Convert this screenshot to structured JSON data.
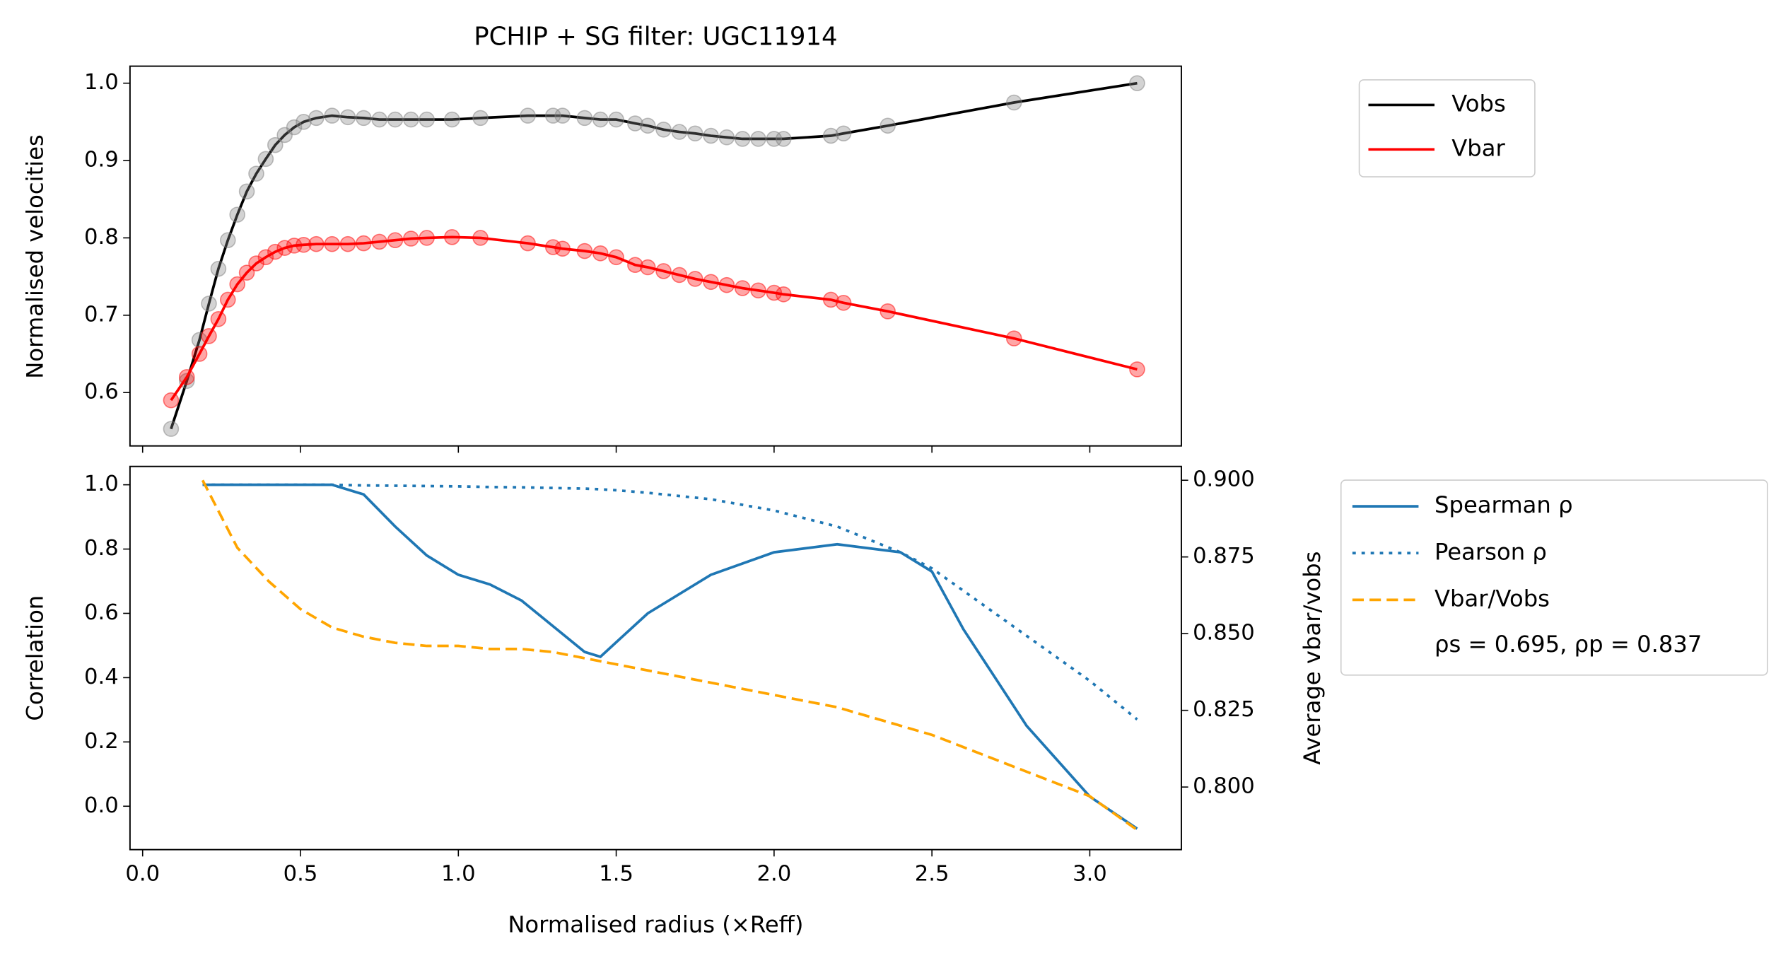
{
  "chart_data": [
    {
      "type": "line",
      "title": "PCHIP + SG filter: UGC11914",
      "ylabel": "Normalised velocities",
      "xlim": [
        -0.04,
        3.29
      ],
      "ylim": [
        0.531,
        1.022
      ],
      "yticks": [
        0.6,
        0.7,
        0.8,
        0.9,
        {
          "value": 1,
          "label": "1.0"
        }
      ],
      "x": [
        0.09,
        0.14,
        0.18,
        0.21,
        0.24,
        0.27,
        0.3,
        0.33,
        0.36,
        0.39,
        0.42,
        0.45,
        0.48,
        0.51,
        0.55,
        0.6,
        0.65,
        0.7,
        0.75,
        0.8,
        0.85,
        0.9,
        0.98,
        1.07,
        1.22,
        1.3,
        1.33,
        1.4,
        1.45,
        1.5,
        1.56,
        1.6,
        1.65,
        1.7,
        1.75,
        1.8,
        1.85,
        1.9,
        1.95,
        2.0,
        2.03,
        2.18,
        2.22,
        2.36,
        2.76,
        3.15
      ],
      "series": [
        {
          "name": "Vobs",
          "color": "#000000",
          "marker_color": "#808080",
          "values": [
            0.553,
            0.615,
            0.668,
            0.715,
            0.76,
            0.797,
            0.83,
            0.86,
            0.883,
            0.902,
            0.92,
            0.933,
            0.943,
            0.95,
            0.955,
            0.958,
            0.956,
            0.955,
            0.953,
            0.953,
            0.953,
            0.953,
            0.953,
            0.955,
            0.958,
            0.958,
            0.958,
            0.955,
            0.953,
            0.953,
            0.948,
            0.945,
            0.94,
            0.937,
            0.935,
            0.932,
            0.93,
            0.928,
            0.928,
            0.928,
            0.928,
            0.932,
            0.935,
            0.945,
            0.975,
            1.0
          ]
        },
        {
          "name": "Vbar",
          "color": "#ff0000",
          "marker_color": "#ff0000",
          "values": [
            0.59,
            0.62,
            0.65,
            0.673,
            0.695,
            0.72,
            0.74,
            0.755,
            0.767,
            0.775,
            0.782,
            0.787,
            0.79,
            0.791,
            0.792,
            0.792,
            0.792,
            0.793,
            0.795,
            0.797,
            0.799,
            0.8,
            0.801,
            0.8,
            0.793,
            0.788,
            0.786,
            0.783,
            0.78,
            0.775,
            0.765,
            0.762,
            0.757,
            0.752,
            0.747,
            0.743,
            0.739,
            0.735,
            0.732,
            0.729,
            0.727,
            0.72,
            0.716,
            0.705,
            0.67,
            0.63
          ]
        }
      ]
    },
    {
      "type": "line",
      "xlabel": "Normalised radius (×Reff)",
      "ylabel": "Correlation",
      "y2label": "Average vbar/vobs",
      "xlim": [
        -0.04,
        3.29
      ],
      "ylim": [
        -0.135,
        1.057
      ],
      "y2lim": [
        0.7796,
        0.9045
      ],
      "xticks": [
        {
          "value": 0,
          "label": "0.0"
        },
        0.5,
        {
          "value": 1,
          "label": "1.0"
        },
        1.5,
        {
          "value": 2,
          "label": "2.0"
        },
        2.5,
        {
          "value": 3,
          "label": "3.0"
        }
      ],
      "yticks": [
        {
          "value": 0,
          "label": "0.0"
        },
        0.2,
        0.4,
        0.6,
        0.8,
        {
          "value": 1,
          "label": "1.0"
        }
      ],
      "y2ticks": [
        {
          "value": 0.8,
          "label": "0.800"
        },
        0.825,
        {
          "value": 0.85,
          "label": "0.850"
        },
        0.875,
        {
          "value": 0.9,
          "label": "0.900"
        }
      ],
      "ytick_color": "#1f77b4",
      "y2tick_color": "#ffa500",
      "x": [
        0.19,
        0.3,
        0.4,
        0.5,
        0.6,
        0.7,
        0.8,
        0.9,
        1.0,
        1.1,
        1.2,
        1.3,
        1.4,
        1.45,
        1.5,
        1.6,
        1.8,
        2.0,
        2.2,
        2.4,
        2.5,
        2.6,
        2.8,
        3.0,
        3.15
      ],
      "series": [
        {
          "name": "Spearman ρ",
          "color": "#1f77b4",
          "linestyle": "solid",
          "values": [
            1.0,
            1.0,
            1.0,
            1.0,
            1.0,
            0.97,
            0.87,
            0.78,
            0.72,
            0.69,
            0.64,
            0.56,
            0.48,
            0.465,
            0.51,
            0.6,
            0.72,
            0.79,
            0.815,
            0.79,
            0.73,
            0.55,
            0.25,
            0.03,
            -0.07
          ]
        },
        {
          "name": "Pearson ρ",
          "color": "#1f77b4",
          "linestyle": "dotted",
          "values": [
            1.0,
            1.0,
            1.0,
            1.0,
            1.0,
            0.998,
            0.997,
            0.996,
            0.995,
            0.993,
            0.992,
            0.99,
            0.988,
            0.986,
            0.983,
            0.975,
            0.955,
            0.92,
            0.87,
            0.79,
            0.74,
            0.67,
            0.53,
            0.39,
            0.27
          ]
        },
        {
          "name": "Vbar/Vobs",
          "color": "#ffa500",
          "linestyle": "dashed",
          "axis": "y2",
          "values": [
            0.9,
            0.878,
            0.867,
            0.858,
            0.852,
            0.849,
            0.847,
            0.846,
            0.846,
            0.845,
            0.845,
            0.844,
            0.842,
            0.841,
            0.84,
            0.838,
            0.834,
            0.83,
            0.826,
            0.82,
            0.817,
            0.813,
            0.805,
            0.797,
            0.786
          ]
        }
      ],
      "annotation": "ρs = 0.695, ρp = 0.837"
    }
  ]
}
